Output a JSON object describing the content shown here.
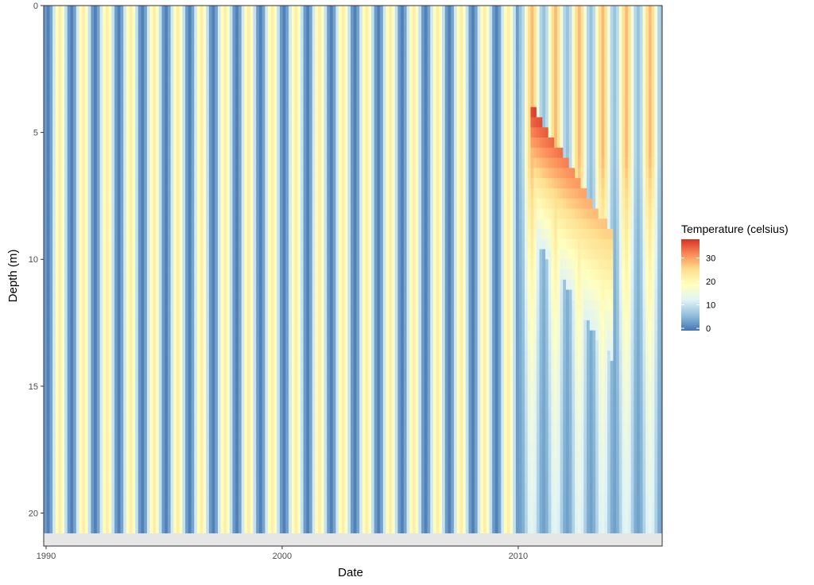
{
  "chart_data": {
    "type": "heatmap",
    "title": "",
    "xlabel": "Date",
    "ylabel": "Depth (m)",
    "x_range": [
      1989.9,
      2016.1
    ],
    "y_range": [
      0,
      21.3
    ],
    "y_reversed": true,
    "x_ticks": [
      {
        "value": 1990,
        "label": "1990"
      },
      {
        "value": 2000,
        "label": "2000"
      },
      {
        "value": 2010,
        "label": "2010"
      }
    ],
    "y_ticks": [
      {
        "value": 0,
        "label": "0"
      },
      {
        "value": 5,
        "label": "5"
      },
      {
        "value": 10,
        "label": "10"
      },
      {
        "value": 15,
        "label": "15"
      },
      {
        "value": 20,
        "label": "20"
      }
    ],
    "grid": true,
    "series_period_years": 1,
    "seasonal_temperature_range": [
      0,
      22
    ],
    "warm_anomaly": {
      "start_year": 2010.5,
      "end_year": 2014,
      "top_depth": 3.8,
      "peak_temperature": 38
    },
    "missing_data_band_depth": [
      20.8,
      21.3
    ],
    "legend": {
      "title": "Temperature (celsius)",
      "placement": "right",
      "ticks": [
        {
          "value": 0,
          "label": "0"
        },
        {
          "value": 10,
          "label": "10"
        },
        {
          "value": 20,
          "label": "20"
        },
        {
          "value": 30,
          "label": "30"
        }
      ],
      "range": [
        -1,
        38
      ],
      "colors": [
        "#4575b4",
        "#91bfdb",
        "#e0f3f8",
        "#ffffbf",
        "#fee090",
        "#fc8d59",
        "#d73027"
      ]
    },
    "colors": {
      "missing": "#e6e6e6",
      "panel_border": "#333333",
      "grid": "#ebebeb"
    }
  }
}
